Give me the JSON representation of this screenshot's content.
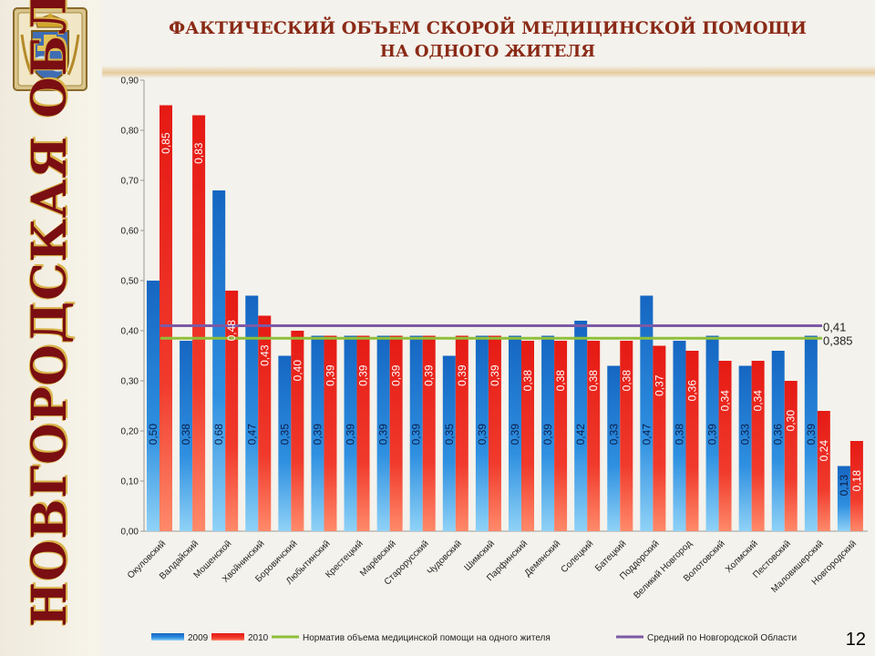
{
  "region_name": "Новгородская область",
  "title_line1": "ФАКТИЧЕСКИЙ ОБЪЕМ СКОРОЙ МЕДИЦИНСКОЙ ПОМОЩИ",
  "title_line2": "НА ОДНОГО ЖИТЕЛЯ",
  "page_number": "12",
  "chart_data": {
    "type": "bar",
    "ylim": [
      0,
      0.9
    ],
    "y_ticks": [
      "0,00",
      "0,10",
      "0,20",
      "0,30",
      "0,40",
      "0,50",
      "0,60",
      "0,70",
      "0,80",
      "0,90"
    ],
    "grid": false,
    "legend_position": "bottom",
    "categories": [
      "Окуловский",
      "Валдайский",
      "Мошенской",
      "Хвойнинский",
      "Боровичский",
      "Любытинский",
      "Крестецкий",
      "Марёвский",
      "Старорусский",
      "Чудовский",
      "Шимский",
      "Парфинский",
      "Демянский",
      "Солецкий",
      "Батецкий",
      "Поддорский",
      "Великий Новгород",
      "Волотовский",
      "Холмский",
      "Пестовский",
      "Маловишерский",
      "Новгородский"
    ],
    "series": [
      {
        "name": "2009",
        "color": "#1a78d0",
        "values": [
          0.5,
          0.38,
          0.68,
          0.47,
          0.35,
          0.39,
          0.39,
          0.39,
          0.39,
          0.35,
          0.39,
          0.39,
          0.39,
          0.42,
          0.33,
          0.47,
          0.38,
          0.39,
          0.33,
          0.36,
          0.39,
          0.13
        ],
        "labels": [
          "0,50",
          "0,38",
          "0,68",
          "0,47",
          "0,35",
          "0,39",
          "0,39",
          "0,39",
          "0,39",
          "0,35",
          "0,39",
          "0,39",
          "0,39",
          "0,42",
          "0,33",
          "0,47",
          "0,38",
          "0,39",
          "0,33",
          "0,36",
          "0,39",
          "0,13"
        ]
      },
      {
        "name": "2010",
        "color": "#e8201c",
        "values": [
          0.85,
          0.83,
          0.48,
          0.43,
          0.4,
          0.39,
          0.39,
          0.39,
          0.39,
          0.39,
          0.39,
          0.38,
          0.38,
          0.38,
          0.38,
          0.37,
          0.36,
          0.34,
          0.34,
          0.3,
          0.24,
          0.18
        ],
        "labels": [
          "0,85",
          "0,83",
          "0,48",
          "0,43",
          "0,40",
          "0,39",
          "0,39",
          "0,39",
          "0,39",
          "0,39",
          "0,39",
          "0,38",
          "0,38",
          "0,38",
          "0,38",
          "0,37",
          "0,36",
          "0,34",
          "0,34",
          "0,30",
          "0,24",
          "0,18"
        ]
      }
    ],
    "reference_lines": [
      {
        "name": "Норматив объема медицинской помощи на одного жителя",
        "value": 0.385,
        "label": "0,385",
        "color": "#8fbf3a"
      },
      {
        "name": "Средний по Новгородской Области",
        "value": 0.41,
        "label": "0,41",
        "color": "#7b5aa6"
      }
    ]
  }
}
